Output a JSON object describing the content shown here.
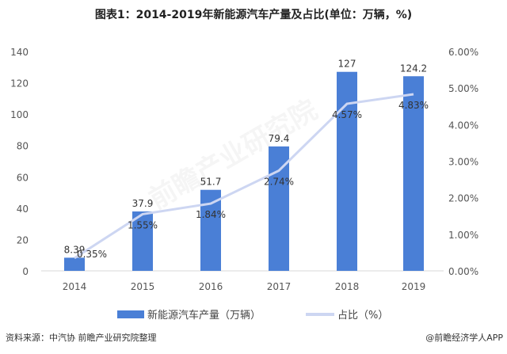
{
  "chart_data": {
    "type": "bar+line",
    "title": "图表1：2014-2019年新能源汽车产量及占比(单位：万辆，%)",
    "categories": [
      "2014",
      "2015",
      "2016",
      "2017",
      "2018",
      "2019"
    ],
    "series": [
      {
        "name": "新能源汽车产量（万辆）",
        "type": "bar",
        "axis": "left",
        "values": [
          8.39,
          37.9,
          51.7,
          79.4,
          127,
          124.2
        ],
        "labels": [
          "8.39",
          "37.9",
          "51.7",
          "79.4",
          "127",
          "124.2"
        ],
        "color": "#4a7fd6"
      },
      {
        "name": "占比（%）",
        "type": "line",
        "axis": "right",
        "values": [
          0.35,
          1.55,
          1.84,
          2.74,
          4.57,
          4.83
        ],
        "labels": [
          "0.35%",
          "1.55%",
          "1.84%",
          "2.74%",
          "4.57%",
          "4.83%"
        ],
        "color": "#cdd6f2"
      }
    ],
    "left_axis": {
      "ylim": [
        0,
        140
      ],
      "ticks": [
        "0",
        "20",
        "40",
        "60",
        "80",
        "100",
        "120",
        "140"
      ]
    },
    "right_axis": {
      "ylim": [
        0,
        6
      ],
      "ticks": [
        "0.00%",
        "1.00%",
        "2.00%",
        "3.00%",
        "4.00%",
        "5.00%",
        "6.00%"
      ]
    },
    "grid": false,
    "legend": "bottom"
  },
  "source": "资料来源：中汽协 前瞻产业研究院整理",
  "credit": "@前瞻经济学人APP",
  "watermark": "前瞻产业研究院"
}
